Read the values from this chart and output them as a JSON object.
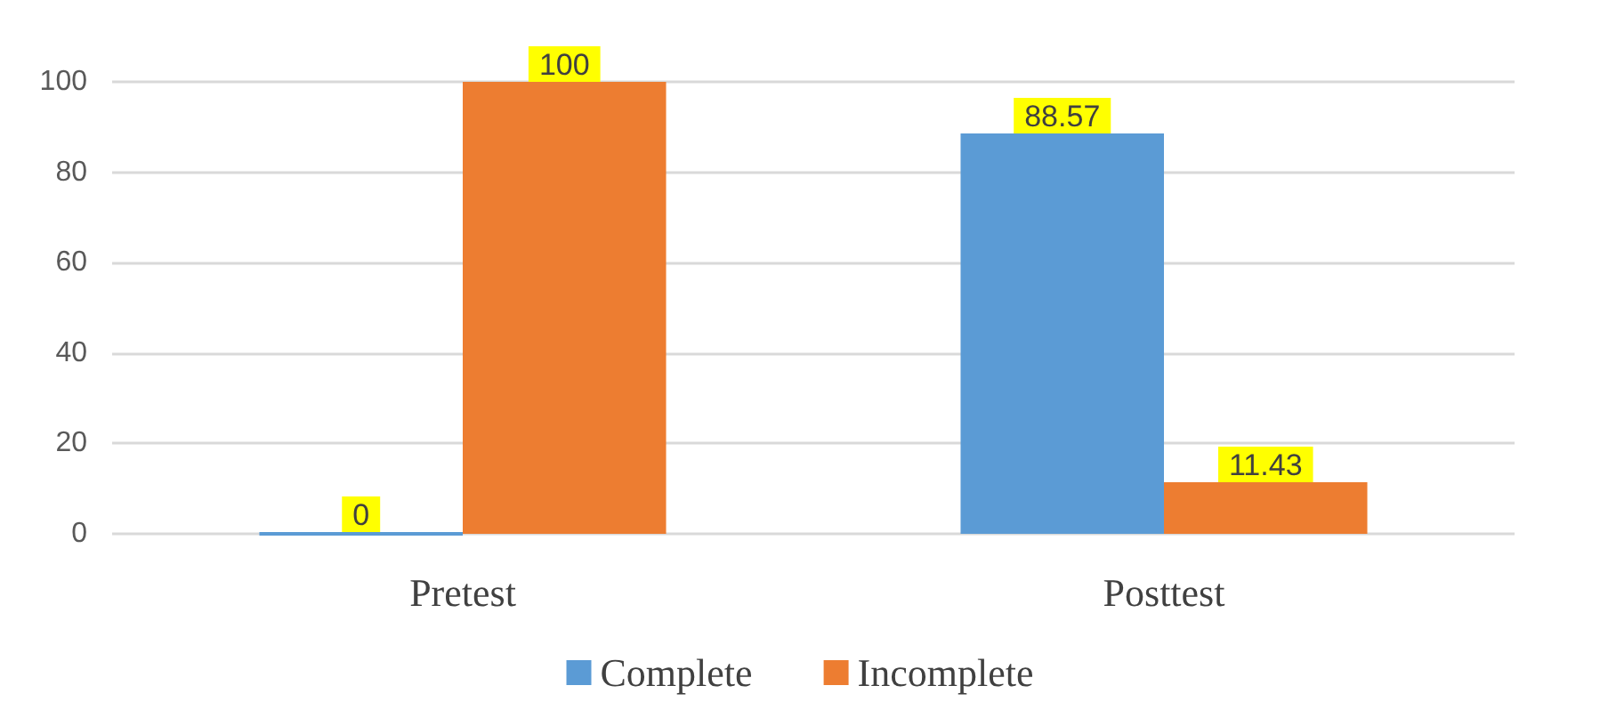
{
  "chart_data": {
    "type": "bar",
    "categories": [
      "Pretest",
      "Posttest"
    ],
    "series": [
      {
        "name": "Complete",
        "color": "#5b9bd5",
        "values": [
          0,
          88.57
        ]
      },
      {
        "name": "Incomplete",
        "color": "#ed7d31",
        "values": [
          100,
          11.43
        ]
      }
    ],
    "ylim": [
      0,
      100
    ],
    "yticks": [
      0,
      20,
      40,
      60,
      80,
      100
    ],
    "grid": "y",
    "legend": "bottom",
    "data_labels": true
  }
}
